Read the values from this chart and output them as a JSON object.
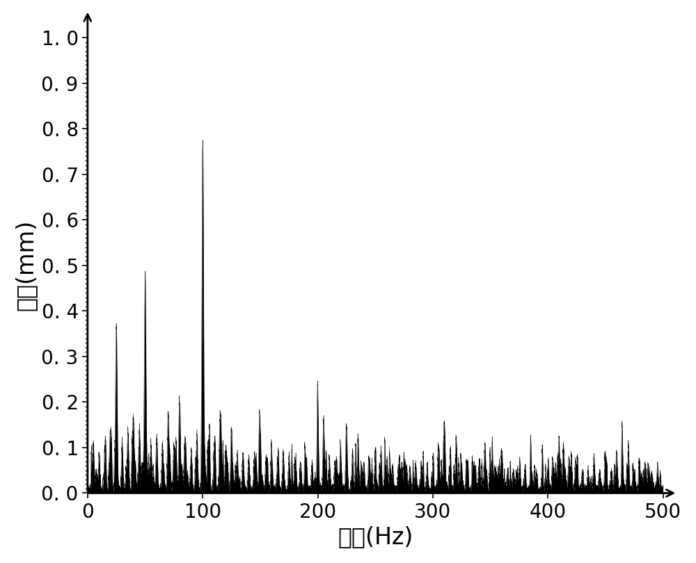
{
  "xlabel": "频率(Hz)",
  "ylabel": "振幅(mm)",
  "xlim": [
    0,
    500
  ],
  "ylim": [
    0.0,
    1.0
  ],
  "xticks": [
    0,
    100,
    200,
    300,
    400,
    500
  ],
  "ytick_vals": [
    0.0,
    0.1,
    0.2,
    0.3,
    0.4,
    0.5,
    0.6,
    0.7,
    0.8,
    0.9,
    1.0
  ],
  "ytick_labels": [
    "0. 0",
    "0. 1",
    "0. 2",
    "0. 3",
    "0. 4",
    "0. 5",
    "0. 6",
    "0. 7",
    "0. 8",
    "0. 9",
    "1. 0"
  ],
  "line_color": "#000000",
  "background_color": "#ffffff",
  "xlabel_fontsize": 24,
  "ylabel_fontsize": 24,
  "tick_fontsize": 20,
  "figsize": [
    10.0,
    8.1
  ],
  "dpi": 100,
  "peaks": [
    [
      25.0,
      0.35
    ],
    [
      50.0,
      0.48
    ],
    [
      100.0,
      0.75
    ],
    [
      70.0,
      0.17
    ],
    [
      80.0,
      0.16
    ],
    [
      115.0,
      0.16
    ],
    [
      150.0,
      0.12
    ],
    [
      35.0,
      0.13
    ],
    [
      45.0,
      0.14
    ],
    [
      20.0,
      0.12
    ],
    [
      40.0,
      0.12
    ],
    [
      60.0,
      0.12
    ],
    [
      200.0,
      0.14
    ],
    [
      205.0,
      0.12
    ],
    [
      225.0,
      0.12
    ],
    [
      310.0,
      0.15
    ],
    [
      440.0,
      0.07
    ],
    [
      75.0,
      0.1
    ],
    [
      85.0,
      0.11
    ],
    [
      55.0,
      0.1
    ],
    [
      65.0,
      0.1
    ],
    [
      30.0,
      0.1
    ],
    [
      105.0,
      0.1
    ],
    [
      15.0,
      0.09
    ],
    [
      110.0,
      0.09
    ],
    [
      90.0,
      0.09
    ],
    [
      95.0,
      0.09
    ],
    [
      125.0,
      0.09
    ],
    [
      130.0,
      0.08
    ],
    [
      145.0,
      0.08
    ],
    [
      170.0,
      0.08
    ],
    [
      5.0,
      0.1
    ],
    [
      10.0,
      0.08
    ],
    [
      155.0,
      0.07
    ],
    [
      160.0,
      0.07
    ],
    [
      175.0,
      0.07
    ],
    [
      190.0,
      0.07
    ],
    [
      235.0,
      0.07
    ],
    [
      260.0,
      0.07
    ],
    [
      210.0,
      0.07
    ],
    [
      140.0,
      0.07
    ],
    [
      165.0,
      0.06
    ],
    [
      180.0,
      0.06
    ],
    [
      185.0,
      0.06
    ],
    [
      195.0,
      0.06
    ],
    [
      215.0,
      0.06
    ],
    [
      220.0,
      0.06
    ],
    [
      230.0,
      0.06
    ],
    [
      240.0,
      0.06
    ],
    [
      245.0,
      0.06
    ],
    [
      250.0,
      0.06
    ],
    [
      255.0,
      0.06
    ],
    [
      135.0,
      0.08
    ],
    [
      285.0,
      0.06
    ],
    [
      305.0,
      0.06
    ],
    [
      120.0,
      0.09
    ],
    [
      265.0,
      0.05
    ],
    [
      270.0,
      0.05
    ],
    [
      275.0,
      0.05
    ],
    [
      280.0,
      0.05
    ],
    [
      290.0,
      0.05
    ],
    [
      295.0,
      0.05
    ],
    [
      300.0,
      0.05
    ],
    [
      315.0,
      0.05
    ],
    [
      320.0,
      0.05
    ],
    [
      325.0,
      0.05
    ],
    [
      330.0,
      0.05
    ],
    [
      335.0,
      0.05
    ],
    [
      340.0,
      0.05
    ],
    [
      345.0,
      0.05
    ],
    [
      350.0,
      0.05
    ],
    [
      355.0,
      0.04
    ],
    [
      360.0,
      0.04
    ],
    [
      365.0,
      0.04
    ],
    [
      370.0,
      0.04
    ],
    [
      375.0,
      0.04
    ],
    [
      380.0,
      0.04
    ],
    [
      385.0,
      0.04
    ],
    [
      390.0,
      0.04
    ],
    [
      395.0,
      0.04
    ],
    [
      400.0,
      0.04
    ],
    [
      405.0,
      0.04
    ],
    [
      410.0,
      0.04
    ],
    [
      415.0,
      0.04
    ],
    [
      420.0,
      0.04
    ],
    [
      425.0,
      0.04
    ],
    [
      430.0,
      0.04
    ],
    [
      435.0,
      0.04
    ],
    [
      445.0,
      0.04
    ],
    [
      450.0,
      0.04
    ],
    [
      455.0,
      0.04
    ],
    [
      460.0,
      0.04
    ],
    [
      465.0,
      0.04
    ],
    [
      470.0,
      0.04
    ],
    [
      475.0,
      0.04
    ],
    [
      480.0,
      0.04
    ],
    [
      485.0,
      0.04
    ],
    [
      490.0,
      0.04
    ],
    [
      495.0,
      0.04
    ]
  ]
}
